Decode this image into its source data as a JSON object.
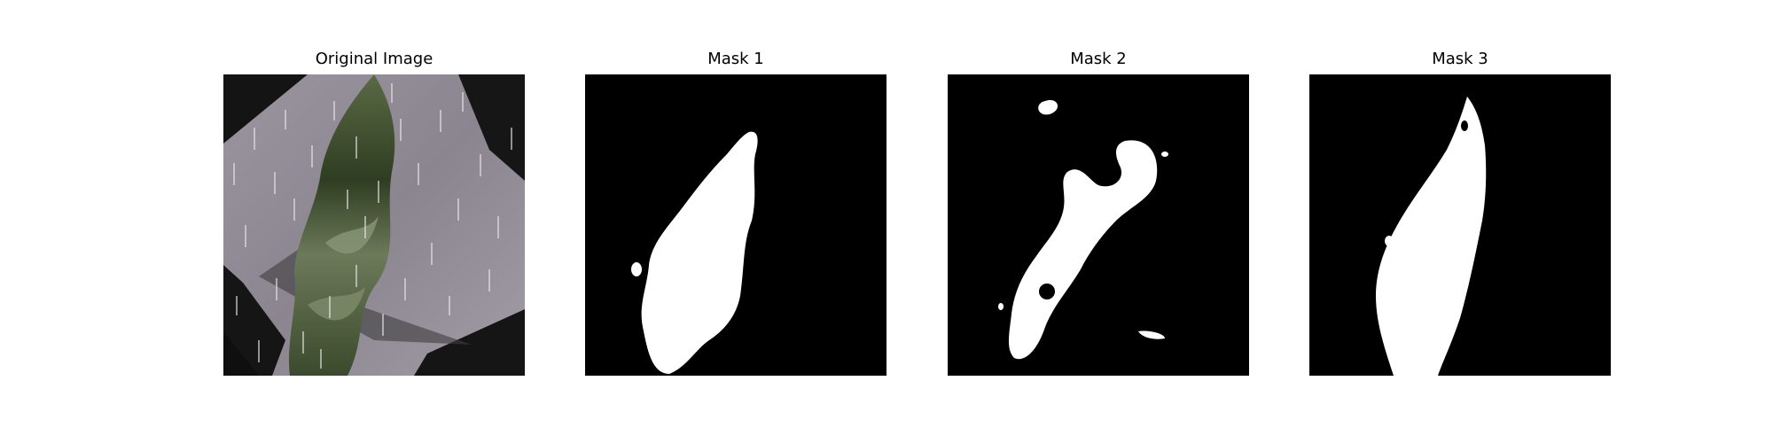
{
  "figure": {
    "panels": [
      {
        "title": "Original Image"
      },
      {
        "title": "Mask 1"
      },
      {
        "title": "Mask 2"
      },
      {
        "title": "Mask 3"
      }
    ]
  },
  "colors": {
    "background": "#ffffff",
    "mask_background": "#000000",
    "mask_foreground": "#ffffff",
    "image_sky": "#8f8892",
    "image_plant": "#3f4f2e",
    "image_shadow": "#1b1b1b",
    "image_rain": "#e6e6e6"
  }
}
